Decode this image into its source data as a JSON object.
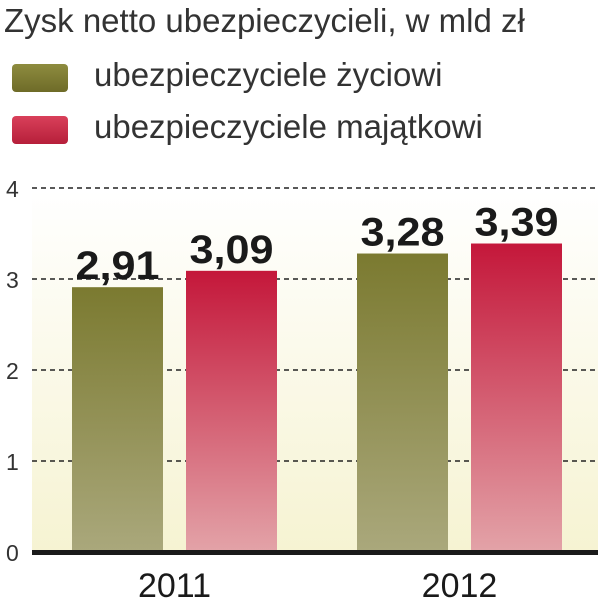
{
  "chart_data": {
    "type": "bar",
    "title": "Zysk netto ubezpieczycieli, w mld zł",
    "categories": [
      "2011",
      "2012"
    ],
    "series": [
      {
        "name": "ubezpieczyciele życiowi",
        "values": [
          2.91,
          3.28
        ],
        "labels": [
          "2,91",
          "3,28"
        ]
      },
      {
        "name": "ubezpieczyciele majątkowi",
        "values": [
          3.09,
          3.39
        ],
        "labels": [
          "3,09",
          "3,39"
        ]
      }
    ],
    "yticks": [
      0,
      1,
      2,
      3,
      4
    ],
    "ylim": [
      0,
      4
    ],
    "grid": true,
    "legend_position": "top-left",
    "colors": {
      "life_top": "#7b7a30",
      "life_bottom": "#aaa87c",
      "property_top": "#c4173a",
      "property_bottom": "#e3a3a8",
      "axis": "#1a1a1a",
      "grid": "#222222",
      "plot_bg_top": "#ffffff",
      "plot_bg_bottom": "#f6f3d2"
    }
  }
}
